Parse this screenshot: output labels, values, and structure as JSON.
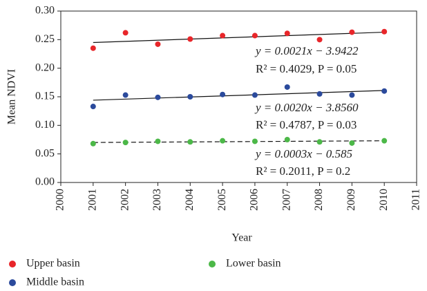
{
  "chart_data": {
    "type": "scatter",
    "x_label": "Year",
    "y_label": "Mean NDVI",
    "x": [
      2001,
      2002,
      2003,
      2004,
      2005,
      2006,
      2007,
      2008,
      2009,
      2010
    ],
    "series": [
      {
        "name": "Upper basin",
        "color": "#e8262a",
        "values": [
          0.235,
          0.262,
          0.242,
          0.251,
          0.257,
          0.257,
          0.261,
          0.25,
          0.263,
          0.264
        ],
        "trend": [
          0.245,
          0.263
        ],
        "trend_dashed": false
      },
      {
        "name": "Middle basin",
        "color": "#2b4a9c",
        "values": [
          0.133,
          0.153,
          0.149,
          0.15,
          0.154,
          0.153,
          0.167,
          0.155,
          0.153,
          0.16
        ],
        "trend": [
          0.144,
          0.161
        ],
        "trend_dashed": false
      },
      {
        "name": "Lower basin",
        "color": "#4cb848",
        "values": [
          0.068,
          0.07,
          0.072,
          0.071,
          0.073,
          0.072,
          0.075,
          0.071,
          0.069,
          0.073
        ],
        "trend": [
          0.07,
          0.073
        ],
        "trend_dashed": true
      }
    ],
    "annotations": [
      "y = 0.0021x − 3.9422",
      "R² = 0.4029, P = 0.05",
      "y = 0.0020x − 3.8560",
      "R² = 0.4787, P = 0.03",
      "y = 0.0003x − 0.585",
      "R² = 0.2011, P = 0.2"
    ],
    "xlim": [
      2000,
      2011
    ],
    "xticks": [
      2000,
      2001,
      2002,
      2003,
      2004,
      2005,
      2006,
      2007,
      2008,
      2009,
      2010,
      2011
    ],
    "ylim": [
      0,
      0.3
    ],
    "yticks": [
      {
        "value": 0,
        "label": "0.00"
      },
      {
        "value": 0.05,
        "label": "0.05"
      },
      {
        "value": 0.1,
        "label": "0.10"
      },
      {
        "value": 0.15,
        "label": "0.15"
      },
      {
        "value": 0.2,
        "label": "0.20"
      },
      {
        "value": 0.25,
        "label": "0.25"
      },
      {
        "value": 0.3,
        "label": "0.30"
      }
    ],
    "grid": false
  }
}
